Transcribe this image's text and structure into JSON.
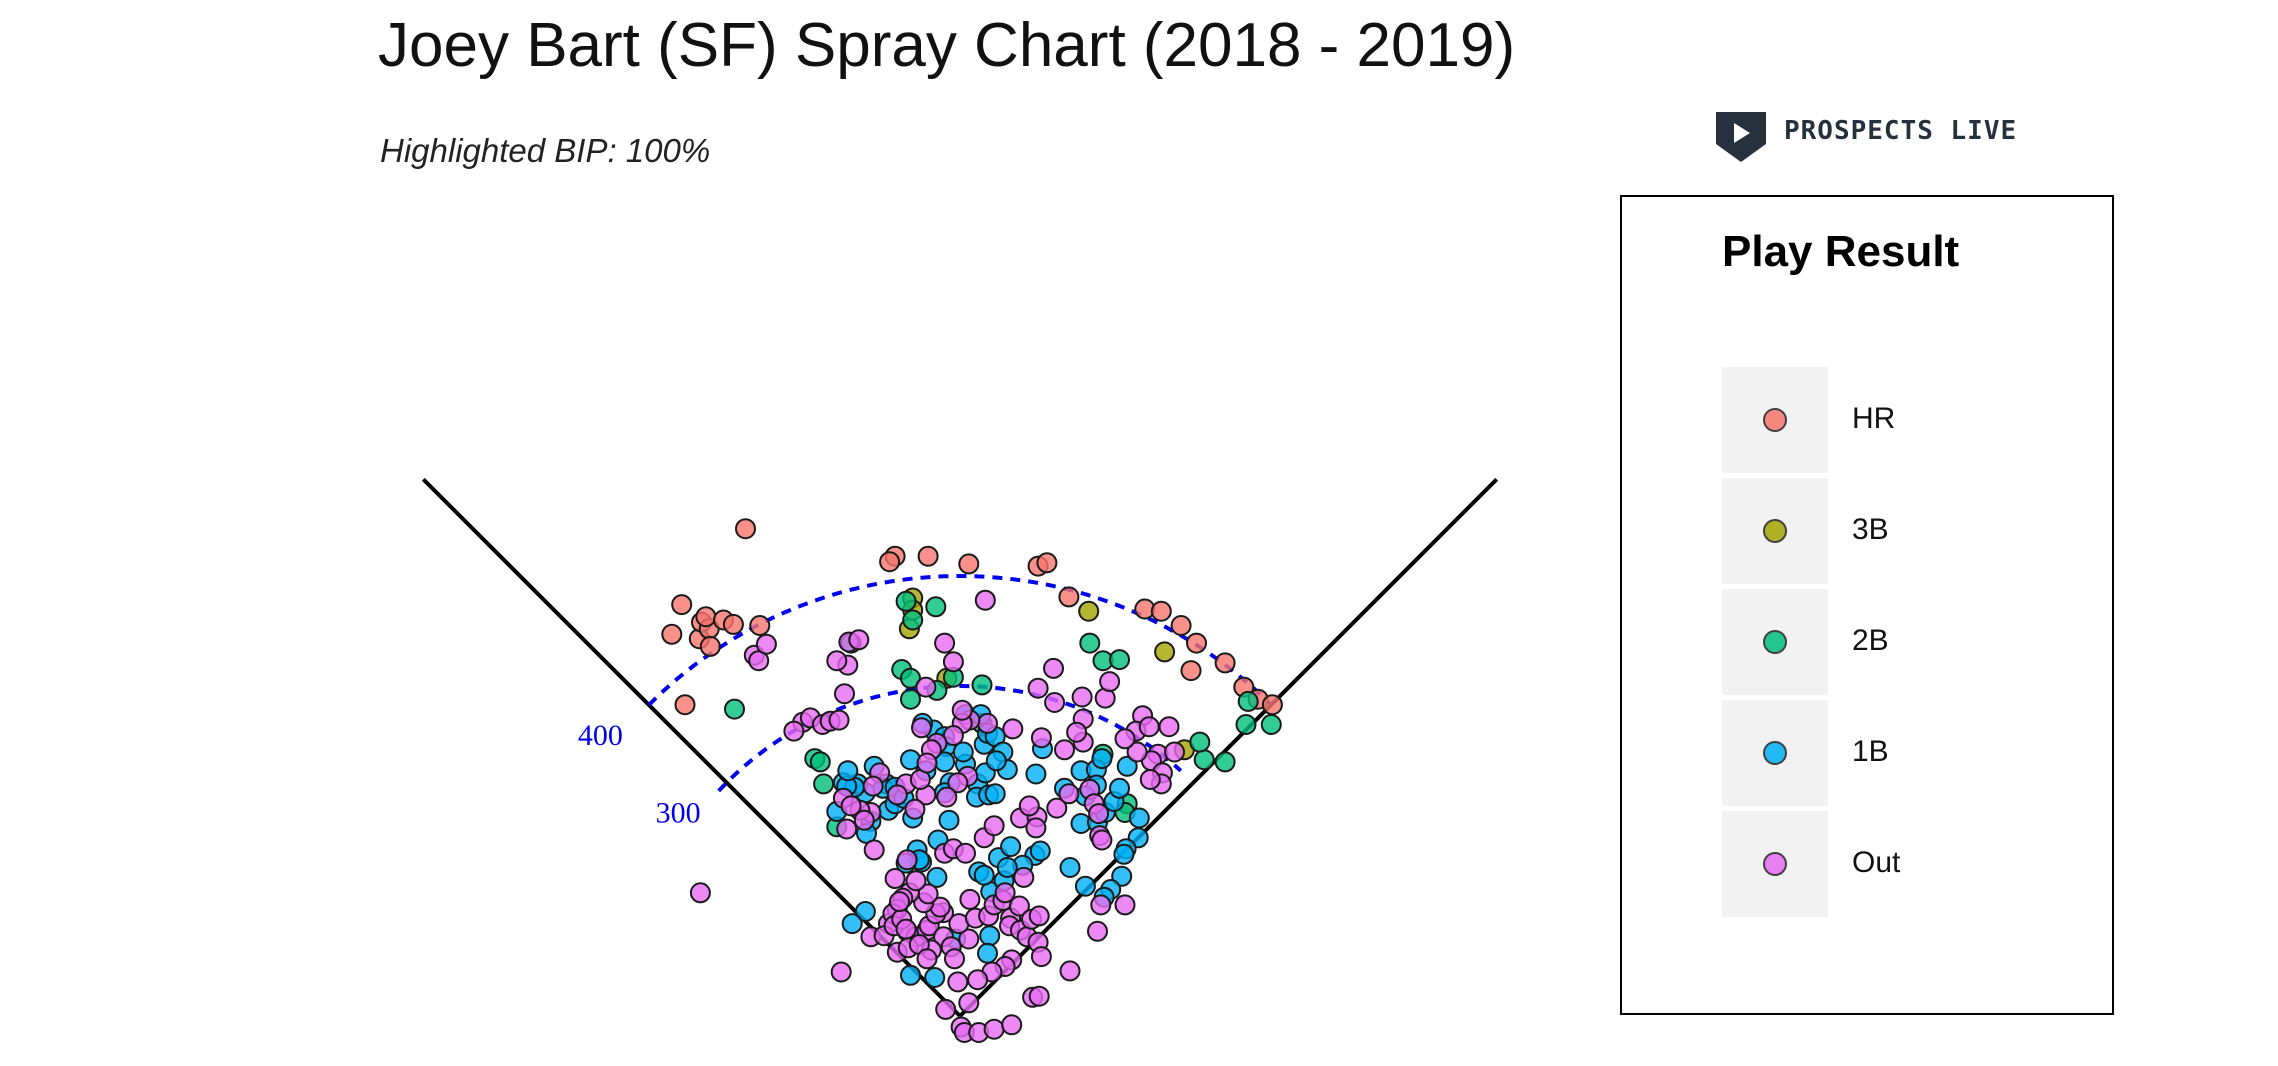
{
  "header": {
    "title": "Joey Bart (SF) Spray Chart (2018 - 2019)",
    "subtitle": "Highlighted BIP: 100%",
    "logo_text": "PROSPECTS LIVE"
  },
  "chart_data": {
    "type": "scatter",
    "title": "Joey Bart (SF) Spray Chart (2018 - 2019)",
    "subtitle": "Highlighted BIP: 100%",
    "coordinates": "x = feet from home plate toward right field (negative = left field), y = feet from home plate toward center field",
    "distance_arcs": [
      {
        "distance": 300,
        "label": "300",
        "color": "#0000ee"
      },
      {
        "distance": 400,
        "label": "400",
        "color": "#0000ee"
      }
    ],
    "legend": {
      "title": "Play Result",
      "entries": [
        {
          "label": "HR",
          "color": "#F8766D"
        },
        {
          "label": "3B",
          "color": "#A3A500"
        },
        {
          "label": "2B",
          "color": "#00BF7D"
        },
        {
          "label": "1B",
          "color": "#00B0F6"
        },
        {
          "label": "Out",
          "color": "#E76BF3"
        }
      ]
    },
    "series": [
      {
        "name": "HR",
        "points": [
          [
            -195,
            443
          ],
          [
            -262,
            347
          ],
          [
            -253,
            374
          ],
          [
            -237,
            343
          ],
          [
            -235,
            358
          ],
          [
            -228,
            352
          ],
          [
            -231,
            363
          ],
          [
            -227,
            336
          ],
          [
            -215,
            360
          ],
          [
            -206,
            356
          ],
          [
            -182,
            355
          ],
          [
            -250,
            283
          ],
          [
            -59,
            418
          ],
          [
            -64,
            413
          ],
          [
            -29,
            418
          ],
          [
            8,
            411
          ],
          [
            71,
            409
          ],
          [
            79,
            412
          ],
          [
            99,
            381
          ],
          [
            168,
            370
          ],
          [
            183,
            368
          ],
          [
            201,
            355
          ],
          [
            215,
            339
          ],
          [
            210,
            314
          ],
          [
            241,
            321
          ],
          [
            258,
            299
          ],
          [
            271,
            288
          ],
          [
            284,
            283
          ]
        ]
      },
      {
        "name": "3B",
        "points": [
          [
            -43,
            380
          ],
          [
            -43,
            369
          ],
          [
            -46,
            352
          ],
          [
            -12,
            307
          ],
          [
            117,
            368
          ],
          [
            186,
            331
          ],
          [
            204,
            242
          ]
        ]
      },
      {
        "name": "2B",
        "points": [
          [
            -49,
            377
          ],
          [
            -99,
            339
          ],
          [
            -43,
            360
          ],
          [
            -22,
            372
          ],
          [
            -53,
            315
          ],
          [
            -45,
            288
          ],
          [
            -6,
            308
          ],
          [
            -21,
            296
          ],
          [
            -45,
            307
          ],
          [
            -205,
            279
          ],
          [
            -132,
            234
          ],
          [
            -127,
            231
          ],
          [
            -112,
            172
          ],
          [
            -124,
            211
          ],
          [
            118,
            339
          ],
          [
            130,
            323
          ],
          [
            145,
            324
          ],
          [
            20,
            301
          ],
          [
            20,
            266
          ],
          [
            130,
            238
          ],
          [
            152,
            193
          ],
          [
            150,
            185
          ],
          [
            222,
            233
          ],
          [
            218,
            249
          ],
          [
            241,
            231
          ],
          [
            260,
            265
          ],
          [
            262,
            286
          ],
          [
            283,
            265
          ]
        ]
      },
      {
        "name": "1B",
        "points": [
          [
            -81,
            177
          ],
          [
            -112,
            186
          ],
          [
            -106,
            212
          ],
          [
            -85,
            166
          ],
          [
            -65,
            187
          ],
          [
            -59,
            193
          ],
          [
            -67,
            211
          ],
          [
            -86,
            203
          ],
          [
            -70,
            207
          ],
          [
            -93,
            211
          ],
          [
            -96,
            208
          ],
          [
            -103,
            209
          ],
          [
            -102,
            223
          ],
          [
            -78,
            227
          ],
          [
            -45,
            233
          ],
          [
            -59,
            208
          ],
          [
            -43,
            180
          ],
          [
            -51,
            198
          ],
          [
            -24,
            260
          ],
          [
            -34,
            266
          ],
          [
            -14,
            254
          ],
          [
            -13,
            245
          ],
          [
            -14,
            231
          ],
          [
            -31,
            223
          ],
          [
            -9,
            212
          ],
          [
            -10,
            178
          ],
          [
            -14,
            203
          ],
          [
            16,
            211
          ],
          [
            5,
            229
          ],
          [
            15,
            199
          ],
          [
            26,
            201
          ],
          [
            32,
            202
          ],
          [
            23,
            221
          ],
          [
            22,
            247
          ],
          [
            3,
            240
          ],
          [
            5,
            274
          ],
          [
            19,
            274
          ],
          [
            25,
            257
          ],
          [
            32,
            254
          ],
          [
            39,
            240
          ],
          [
            43,
            224
          ],
          [
            33,
            232
          ],
          [
            75,
            243
          ],
          [
            69,
            220
          ],
          [
            95,
            207
          ],
          [
            110,
            223
          ],
          [
            124,
            224
          ],
          [
            129,
            234
          ],
          [
            124,
            210
          ],
          [
            114,
            200
          ],
          [
            110,
            175
          ],
          [
            125,
            176
          ],
          [
            132,
            185
          ],
          [
            140,
            195
          ],
          [
            145,
            207
          ],
          [
            152,
            227
          ],
          [
            163,
            180
          ],
          [
            162,
            162
          ],
          [
            151,
            152
          ],
          [
            149,
            147
          ],
          [
            147,
            127
          ],
          [
            137,
            115
          ],
          [
            131,
            108
          ],
          [
            -20,
            160
          ],
          [
            -39,
            151
          ],
          [
            -35,
            140
          ],
          [
            -37,
            142
          ],
          [
            -49,
            139
          ],
          [
            -21,
            126
          ],
          [
            17,
            131
          ],
          [
            28,
            113
          ],
          [
            35,
            144
          ],
          [
            46,
            154
          ],
          [
            68,
            146
          ],
          [
            73,
            150
          ],
          [
            57,
            137
          ],
          [
            40,
            123
          ],
          [
            22,
            128
          ],
          [
            100,
            135
          ],
          [
            114,
            118
          ],
          [
            -86,
            95
          ],
          [
            -98,
            84
          ],
          [
            -23,
            35
          ],
          [
            -45,
            37
          ],
          [
            27,
            73
          ],
          [
            25,
            57
          ],
          [
            -4,
            70
          ],
          [
            43,
            135
          ]
        ]
      },
      {
        "name": "Out",
        "points": [
          [
            -187,
            328
          ],
          [
            -183,
            323
          ],
          [
            -176,
            338
          ],
          [
            -143,
            267
          ],
          [
            -136,
            271
          ],
          [
            -125,
            265
          ],
          [
            -151,
            259
          ],
          [
            -105,
            293
          ],
          [
            -102,
            319
          ],
          [
            -101,
            340
          ],
          [
            -92,
            342
          ],
          [
            -112,
            323
          ],
          [
            -118,
            268
          ],
          [
            -110,
            269
          ],
          [
            -35,
            262
          ],
          [
            -31,
            299
          ],
          [
            -6,
            322
          ],
          [
            -14,
            339
          ],
          [
            23,
            378
          ],
          [
            71,
            298
          ],
          [
            86,
            285
          ],
          [
            85,
            316
          ],
          [
            111,
            290
          ],
          [
            112,
            270
          ],
          [
            132,
            289
          ],
          [
            136,
            304
          ],
          [
            166,
            273
          ],
          [
            160,
            259
          ],
          [
            172,
            263
          ],
          [
            190,
            263
          ],
          [
            180,
            238
          ],
          [
            174,
            232
          ],
          [
            195,
            240
          ],
          [
            184,
            221
          ],
          [
            183,
            211
          ],
          [
            173,
            215
          ],
          [
            161,
            240
          ],
          [
            150,
            252
          ],
          [
            112,
            249
          ],
          [
            106,
            258
          ],
          [
            95,
            242
          ],
          [
            74,
            253
          ],
          [
            48,
            261
          ],
          [
            25,
            266
          ],
          [
            9,
            269
          ],
          [
            2,
            266
          ],
          [
            2,
            278
          ],
          [
            -6,
            255
          ],
          [
            -21,
            248
          ],
          [
            -26,
            242
          ],
          [
            7,
            218
          ],
          [
            -2,
            212
          ],
          [
            -12,
            199
          ],
          [
            -31,
            201
          ],
          [
            -41,
            188
          ],
          [
            -49,
            211
          ],
          [
            -36,
            215
          ],
          [
            -30,
            230
          ],
          [
            -57,
            201
          ],
          [
            -73,
            221
          ],
          [
            -79,
            209
          ],
          [
            -81,
            185
          ],
          [
            -91,
            187
          ],
          [
            -87,
            178
          ],
          [
            -106,
            198
          ],
          [
            -103,
            170
          ],
          [
            -99,
            191
          ],
          [
            -78,
            151
          ],
          [
            -48,
            142
          ],
          [
            -59,
            125
          ],
          [
            -14,
            148
          ],
          [
            -6,
            152
          ],
          [
            5,
            148
          ],
          [
            22,
            162
          ],
          [
            31,
            173
          ],
          [
            55,
            180
          ],
          [
            70,
            181
          ],
          [
            63,
            191
          ],
          [
            69,
            171
          ],
          [
            88,
            189
          ],
          [
            99,
            202
          ],
          [
            118,
            206
          ],
          [
            122,
            193
          ],
          [
            126,
            184
          ],
          [
            127,
            164
          ],
          [
            129,
            160
          ],
          [
            -236,
            112
          ],
          [
            -108,
            40
          ],
          [
            -48,
            77
          ],
          [
            -40,
            72
          ],
          [
            -30,
            78
          ],
          [
            -28,
            82
          ],
          [
            -15,
            72
          ],
          [
            -8,
            63
          ],
          [
            -26,
            60
          ],
          [
            -15,
            94
          ],
          [
            -22,
            93
          ],
          [
            -18,
            99
          ],
          [
            -33,
            103
          ],
          [
            -29,
            111
          ],
          [
            -46,
            112
          ],
          [
            -40,
            123
          ],
          [
            -52,
            107
          ],
          [
            -57,
            97
          ],
          [
            -65,
            84
          ],
          [
            -61,
            93
          ],
          [
            -81,
            72
          ],
          [
            -69,
            73
          ],
          [
            -60,
            82
          ],
          [
            -53,
            88
          ],
          [
            -55,
            104
          ],
          [
            -49,
            79
          ],
          [
            -57,
            58
          ],
          [
            -47,
            62
          ],
          [
            -37,
            65
          ],
          [
            -30,
            52
          ],
          [
            -5,
            52
          ],
          [
            -2,
            31
          ],
          [
            8,
            70
          ],
          [
            9,
            106
          ],
          [
            -1,
            84
          ],
          [
            14,
            89
          ],
          [
            26,
            91
          ],
          [
            31,
            101
          ],
          [
            39,
            105
          ],
          [
            41,
            112
          ],
          [
            46,
            89
          ],
          [
            45,
            82
          ],
          [
            54,
            100
          ],
          [
            55,
            78
          ],
          [
            61,
            72
          ],
          [
            65,
            88
          ],
          [
            72,
            91
          ],
          [
            58,
            126
          ],
          [
            71,
            67
          ],
          [
            74,
            54
          ],
          [
            47,
            51
          ],
          [
            41,
            45
          ],
          [
            29,
            40
          ],
          [
            16,
            33
          ],
          [
            8,
            12
          ],
          [
            -13,
            6
          ],
          [
            1,
            -10
          ],
          [
            4,
            -15
          ],
          [
            17,
            -15
          ],
          [
            31,
            -12
          ],
          [
            47,
            -8
          ],
          [
            66,
            17
          ],
          [
            72,
            18
          ],
          [
            100,
            41
          ],
          [
            125,
            77
          ],
          [
            128,
            101
          ],
          [
            150,
            101
          ]
        ]
      }
    ]
  }
}
